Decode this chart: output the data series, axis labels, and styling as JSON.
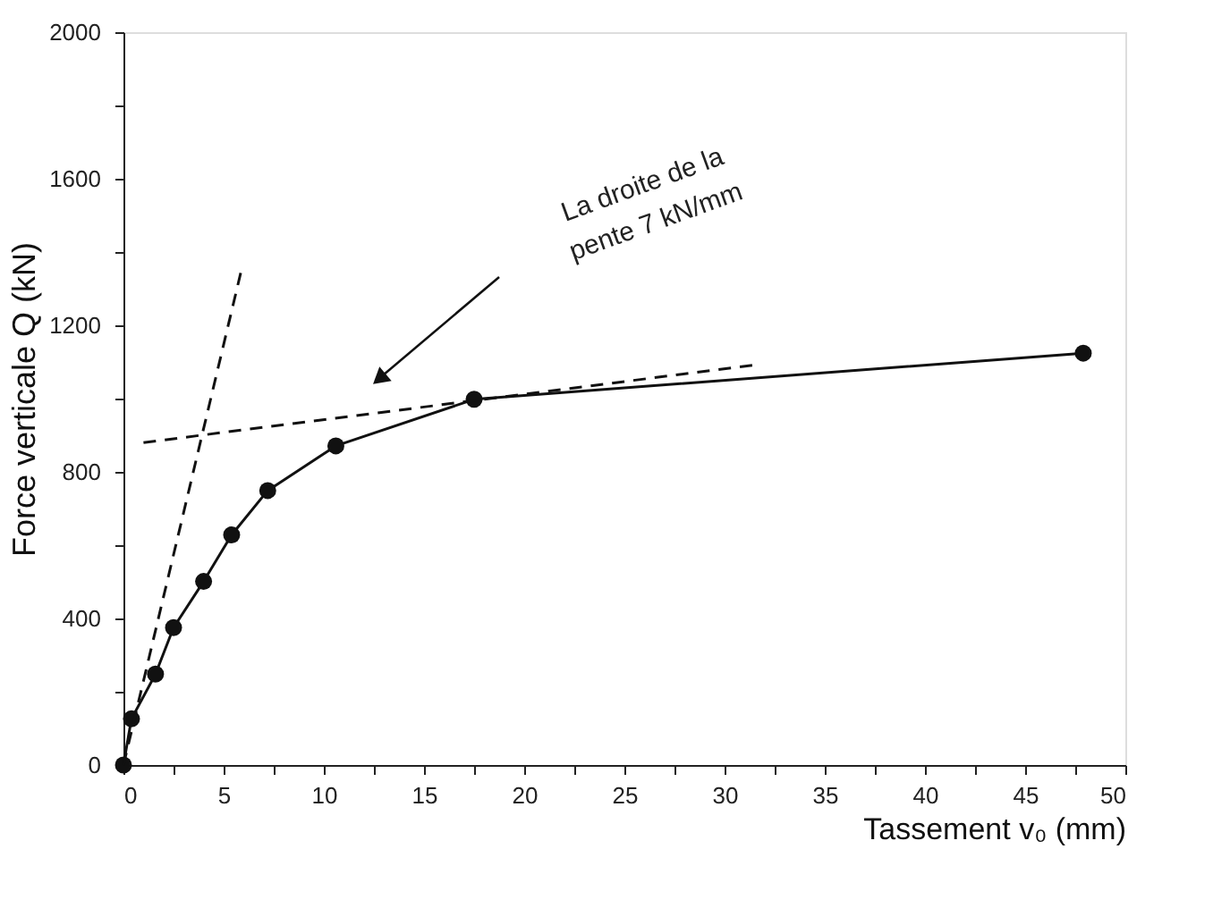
{
  "chart_data": {
    "type": "line",
    "xlabel": "Tassement v₀ (mm)",
    "ylabel": "Force verticale Q (kN)",
    "xlim": [
      0,
      50
    ],
    "ylim": [
      0,
      2000
    ],
    "xticks": [
      0,
      {
        "value": 2.5,
        "label": null
      },
      5,
      {
        "value": 7.5,
        "label": null
      },
      10,
      {
        "value": 12.5,
        "label": null
      },
      15,
      {
        "value": 17.5,
        "label": null
      },
      20,
      {
        "value": 22.5,
        "label": null
      },
      25,
      {
        "value": 27.5,
        "label": null
      },
      30,
      {
        "value": 32.5,
        "label": null
      },
      35,
      {
        "value": 37.5,
        "label": null
      },
      40,
      {
        "value": 42.5,
        "label": null
      },
      45,
      {
        "value": 47.5,
        "label": null
      },
      50
    ],
    "yticks": [
      0,
      {
        "value": 200,
        "label": null
      },
      400,
      {
        "value": 600,
        "label": null
      },
      800,
      {
        "value": 1000,
        "label": null
      },
      1200,
      {
        "value": 1400,
        "label": null
      },
      1600,
      {
        "value": 1800,
        "label": null
      },
      2000
    ],
    "grid": false,
    "legend": false,
    "series": [
      {
        "color": "#111111",
        "marker": "circle",
        "line_style": "solid",
        "x": [
          0,
          0.4,
          1.6,
          2.5,
          4.0,
          5.4,
          7.2,
          10.6,
          17.5,
          47.9
        ],
        "values": [
          0,
          126,
          248,
          375,
          501,
          628,
          749,
          871,
          998,
          1124
        ]
      },
      {
        "color": "#111111",
        "marker": "none",
        "line_style": "dashed",
        "x": [
          0,
          5.9
        ],
        "values": [
          0,
          1354
        ]
      },
      {
        "color": "#111111",
        "marker": "none",
        "line_style": "dashed",
        "x": [
          1.0,
          31.4
        ],
        "values": [
          880,
          1091
        ]
      }
    ],
    "annotations": [
      "La droite de la\npente 7 kN/mm"
    ]
  }
}
